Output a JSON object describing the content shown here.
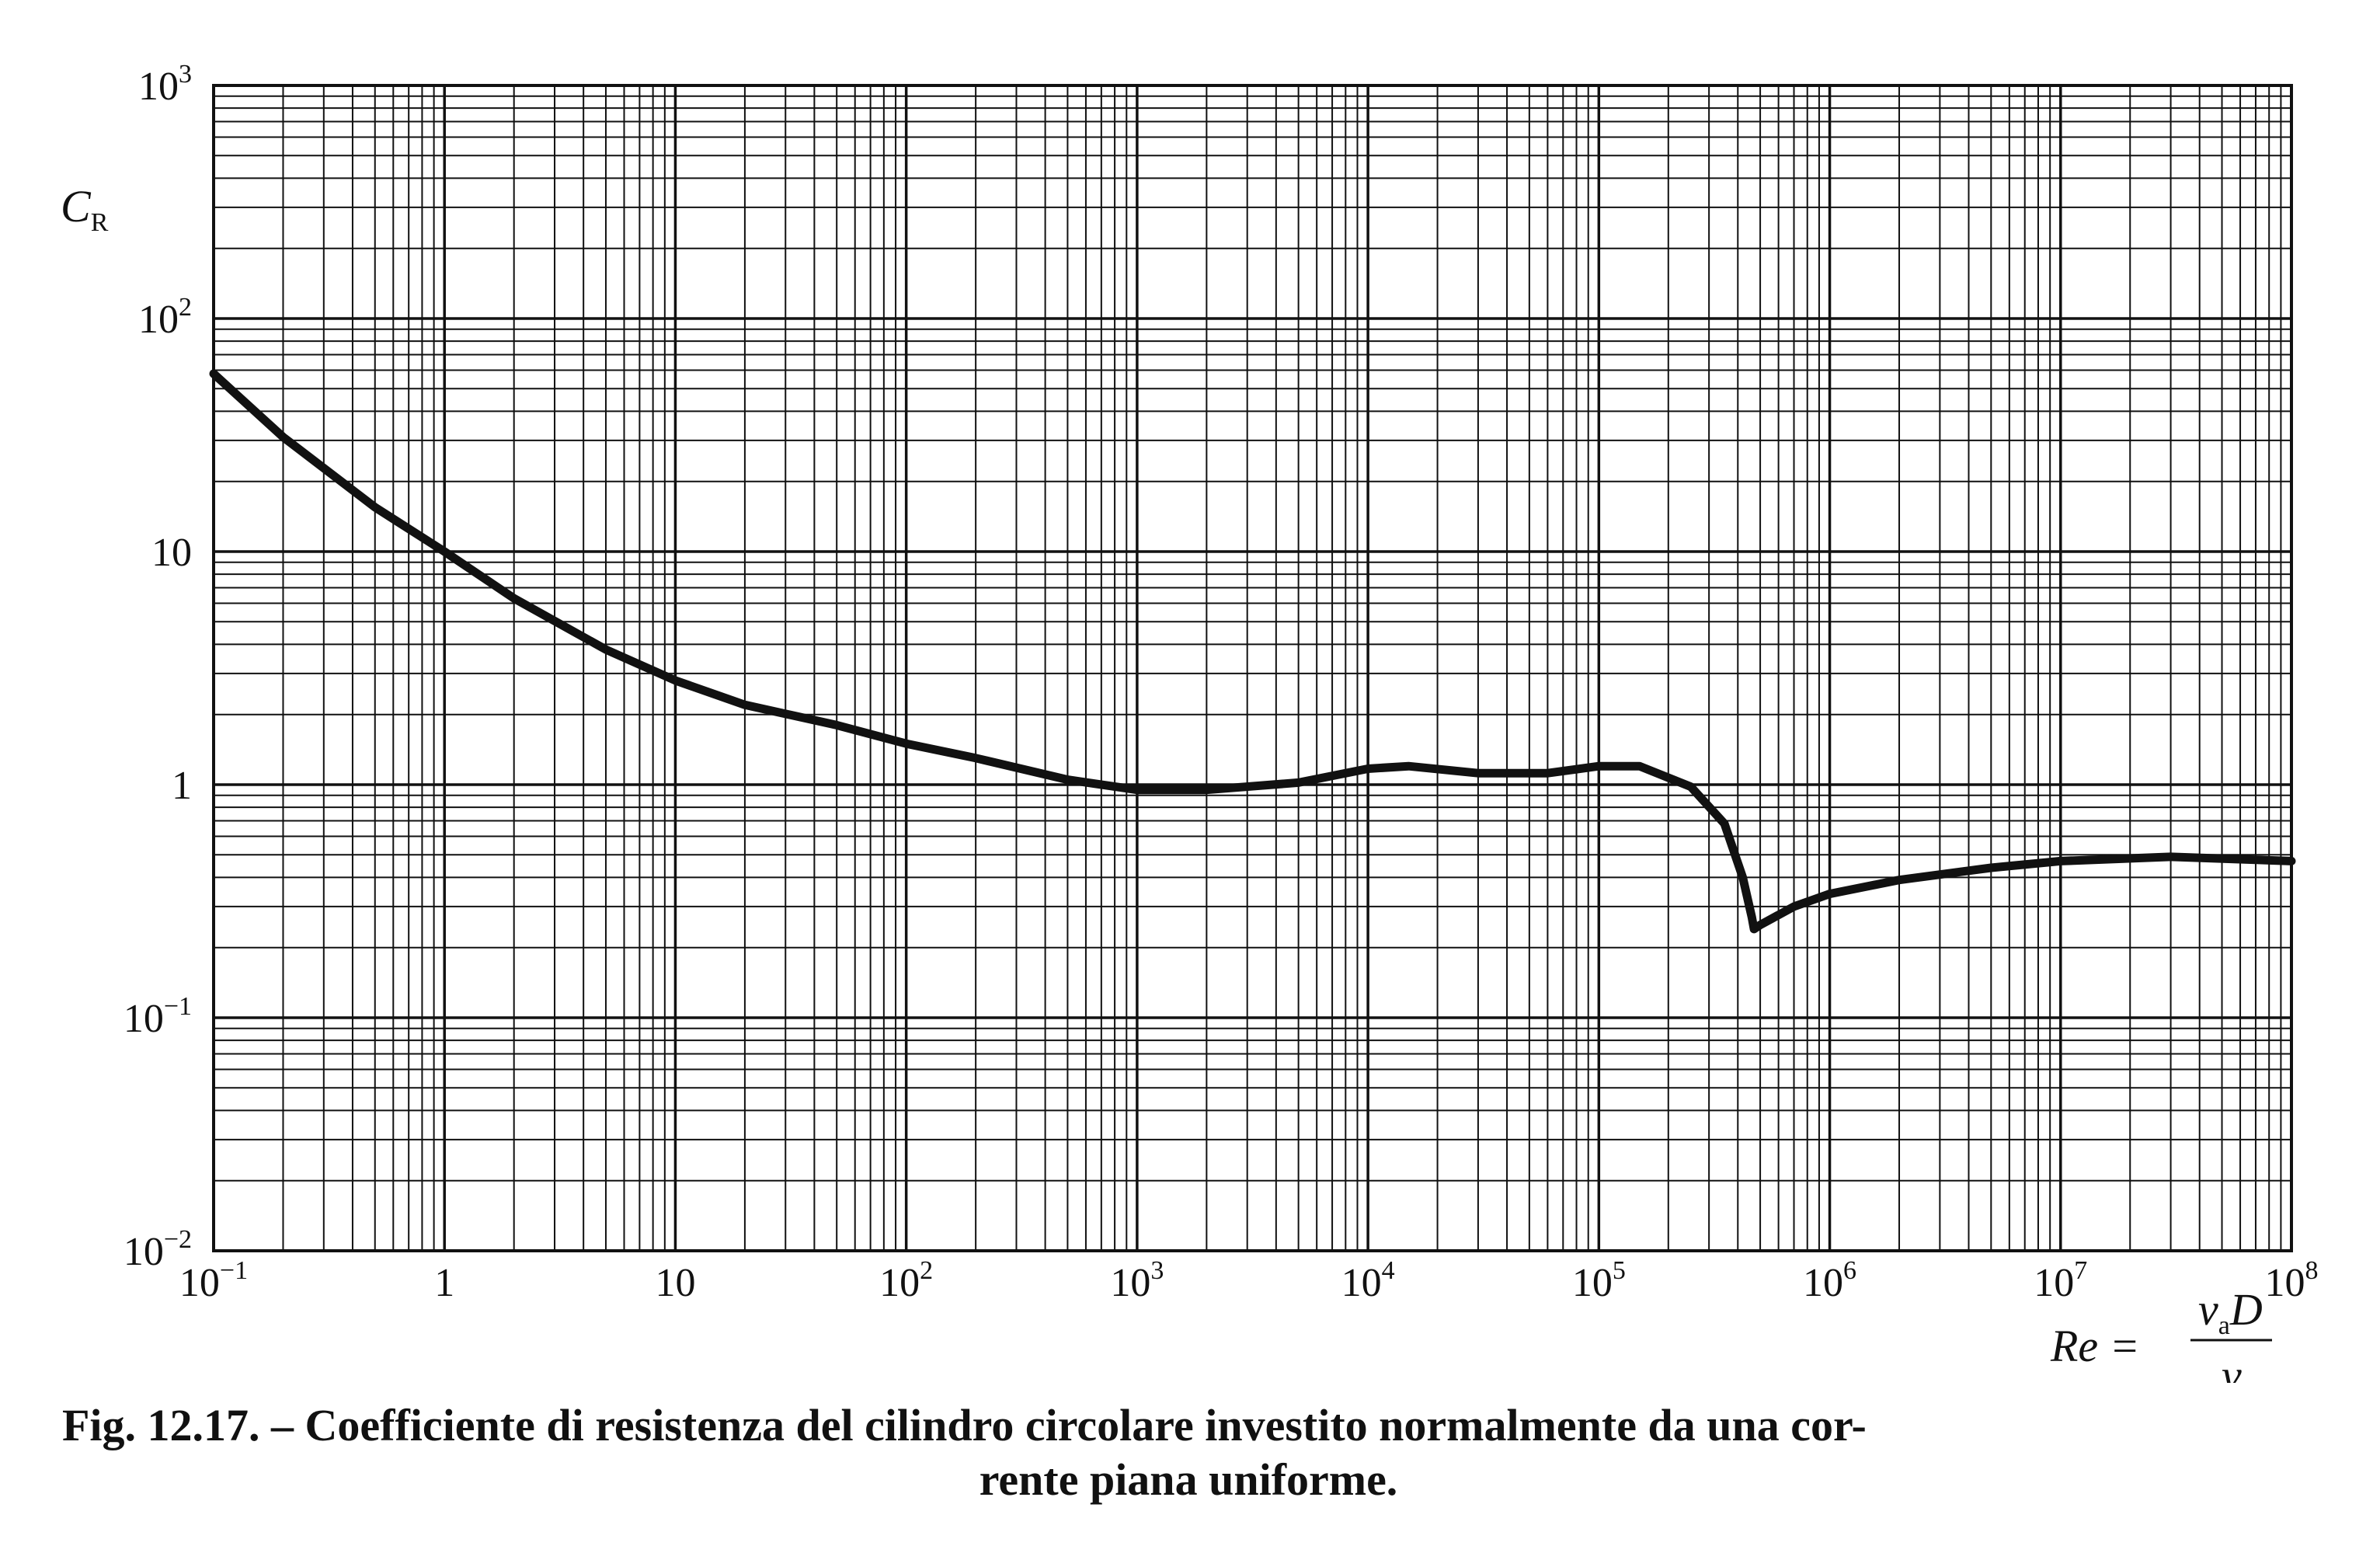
{
  "chart_data": {
    "type": "line",
    "title": "",
    "x_scale": "log",
    "y_scale": "log",
    "xlim": [
      0.1,
      100000000
    ],
    "ylim": [
      0.01,
      1000
    ],
    "grid": true,
    "x_ticks": [
      {
        "value": 0.1,
        "base": "10",
        "exp": "−1"
      },
      {
        "value": 1,
        "base": "1",
        "exp": ""
      },
      {
        "value": 10,
        "base": "10",
        "exp": ""
      },
      {
        "value": 100,
        "base": "10",
        "exp": "2"
      },
      {
        "value": 1000,
        "base": "10",
        "exp": "3"
      },
      {
        "value": 10000,
        "base": "10",
        "exp": "4"
      },
      {
        "value": 100000,
        "base": "10",
        "exp": "5"
      },
      {
        "value": 1000000,
        "base": "10",
        "exp": "6"
      },
      {
        "value": 10000000,
        "base": "10",
        "exp": "7"
      },
      {
        "value": 100000000,
        "base": "10",
        "exp": "8"
      }
    ],
    "y_ticks": [
      {
        "value": 0.01,
        "base": "10",
        "exp": "−2"
      },
      {
        "value": 0.1,
        "base": "10",
        "exp": "−1"
      },
      {
        "value": 1,
        "base": "1",
        "exp": ""
      },
      {
        "value": 10,
        "base": "10",
        "exp": ""
      },
      {
        "value": 100,
        "base": "10",
        "exp": "2"
      },
      {
        "value": 1000,
        "base": "10",
        "exp": "3"
      }
    ],
    "ylabel": {
      "main": "C",
      "sub": "R"
    },
    "xlabel": {
      "lhs": "Re =",
      "num_main": "v",
      "num_sub": "a",
      "num_rest": "D",
      "den": "ν"
    },
    "series": [
      {
        "x": [
          0.1,
          0.2,
          0.5,
          1,
          2,
          5,
          10,
          20,
          50,
          100,
          200,
          500,
          1000,
          2000,
          5000,
          10000,
          15000,
          30000,
          60000,
          100000,
          150000,
          250000,
          350000,
          420000,
          460000,
          470000,
          500000,
          700000,
          1000000,
          2000000,
          5000000,
          10000000,
          30000000,
          100000000
        ],
        "y": [
          58,
          31,
          15.5,
          10,
          6.3,
          3.8,
          2.8,
          2.2,
          1.8,
          1.5,
          1.3,
          1.05,
          0.95,
          0.95,
          1.02,
          1.17,
          1.2,
          1.12,
          1.12,
          1.2,
          1.2,
          0.98,
          0.68,
          0.4,
          0.27,
          0.24,
          0.25,
          0.3,
          0.34,
          0.39,
          0.44,
          0.47,
          0.49,
          0.47
        ],
        "color": "#111111"
      }
    ]
  },
  "caption": {
    "line1": "Fig. 12.17. – Coefficiente di resistenza del cilindro circolare investito normalmente da una cor-",
    "line2": "rente piana uniforme."
  }
}
